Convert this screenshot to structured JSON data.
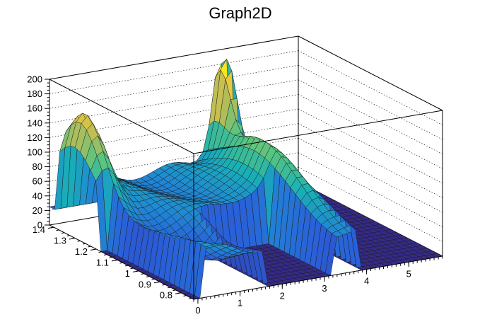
{
  "chart_data": {
    "type": "surface",
    "title": "Graph2D",
    "xlabel": "",
    "ylabel": "",
    "zlabel": "",
    "x_ticks": [
      "0",
      "1",
      "2",
      "3",
      "4",
      "5"
    ],
    "y_ticks": [
      "0.8",
      "0.9",
      "1",
      "1.1",
      "1.2",
      "1.3",
      "1.4"
    ],
    "z_ticks": [
      "0",
      "20",
      "40",
      "60",
      "80",
      "100",
      "120",
      "140",
      "160",
      "180",
      "200"
    ],
    "xlim": [
      -0.1,
      5.8
    ],
    "ylim": [
      0.74,
      1.42
    ],
    "zlim": [
      0,
      200
    ],
    "palette": [
      "#352a87",
      "#2a5ed8",
      "#1f8bd2",
      "#19b0b5",
      "#55c482",
      "#b5bd59",
      "#f2c73a",
      "#f9fb0e"
    ],
    "features": {
      "left_ridge_peak": {
        "x": 0.15,
        "y": 1.3,
        "z": 165
      },
      "right_ridge_peak": {
        "x": 3.7,
        "y": 1.35,
        "z": 200
      },
      "central_plateau_level": 60,
      "gap_x_ranges": [
        [
          -0.1,
          0.05
        ],
        [
          1.6,
          3.2
        ],
        [
          3.75,
          5.8
        ]
      ],
      "gap_min_y": 1.05
    },
    "grid": true
  }
}
